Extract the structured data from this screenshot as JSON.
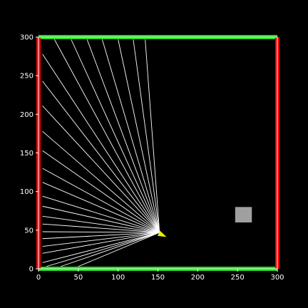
{
  "colors": {
    "background": "#000000",
    "wall_green": "#22dd22",
    "wall_red": "#ee0000",
    "ray": "#ffffff",
    "agent": "#eeee00",
    "obstacle": "#a0a0a0",
    "axes": "#ffffff"
  },
  "world": {
    "xlim": [
      0,
      300
    ],
    "ylim": [
      0,
      300
    ],
    "x_ticks": [
      "0",
      "50",
      "100",
      "150",
      "200",
      "250",
      "300"
    ],
    "y_ticks": [
      "0",
      "50",
      "100",
      "150",
      "200",
      "250",
      "300"
    ]
  },
  "chart_data": {
    "type": "scatter",
    "xlim": [
      0,
      300
    ],
    "ylim": [
      0,
      300
    ],
    "walls": [
      {
        "name": "top",
        "color": "green",
        "x": [
          0,
          300
        ],
        "y": [
          300,
          300
        ]
      },
      {
        "name": "bottom",
        "color": "green",
        "x": [
          0,
          300
        ],
        "y": [
          0,
          0
        ]
      },
      {
        "name": "left",
        "color": "red",
        "x": [
          0,
          0
        ],
        "y": [
          0,
          300
        ]
      },
      {
        "name": "right",
        "color": "red",
        "x": [
          300,
          300
        ],
        "y": [
          0,
          300
        ]
      }
    ],
    "agent": {
      "x": 155,
      "y": 44,
      "heading_deg": -25
    },
    "ray_origin": {
      "x": 152,
      "y": 47
    },
    "ray_endpoints": [
      [
        134,
        297
      ],
      [
        119,
        297
      ],
      [
        100,
        297
      ],
      [
        80,
        297
      ],
      [
        61,
        297
      ],
      [
        41,
        297
      ],
      [
        20,
        297
      ],
      [
        5,
        278
      ],
      [
        5,
        243
      ],
      [
        5,
        211
      ],
      [
        5,
        178
      ],
      [
        5,
        153
      ],
      [
        5,
        130
      ],
      [
        5,
        112
      ],
      [
        5,
        94
      ],
      [
        5,
        81
      ],
      [
        5,
        68
      ],
      [
        5,
        58
      ],
      [
        5,
        48
      ],
      [
        5,
        39
      ],
      [
        5,
        29
      ],
      [
        5,
        20
      ],
      [
        5,
        8
      ],
      [
        10,
        3
      ],
      [
        28,
        3
      ],
      [
        50,
        3
      ]
    ],
    "obstacle": {
      "x0": 247,
      "x1": 268,
      "y0": 60,
      "y1": 80
    }
  }
}
